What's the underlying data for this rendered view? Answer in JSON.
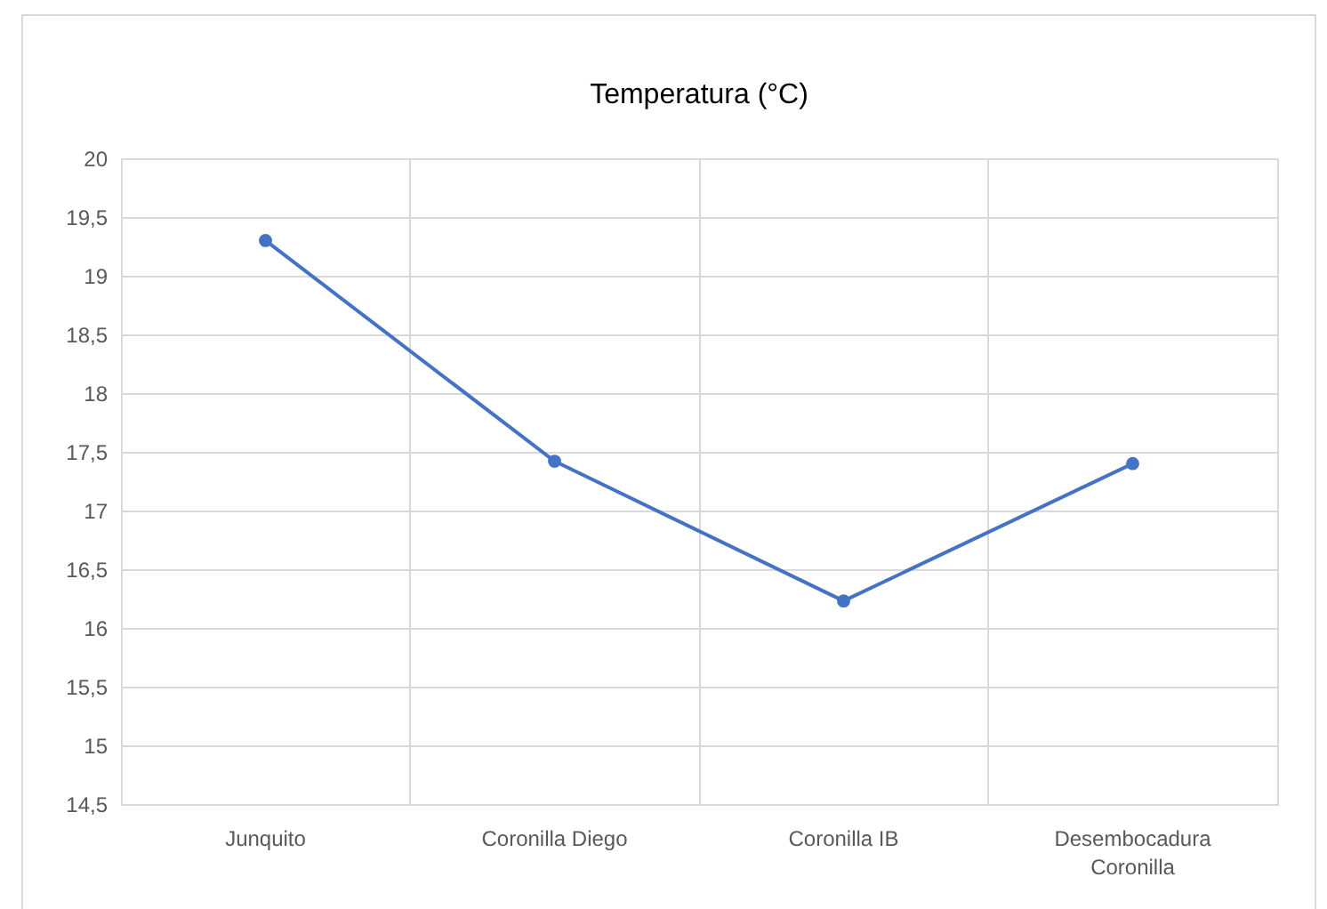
{
  "chart_data": {
    "type": "line",
    "title": "Temperatura (°C)",
    "categories": [
      "Junquito",
      "Coronilla Diego",
      "Coronilla IB",
      "Desembocadura Coronilla"
    ],
    "series": [
      {
        "color": "#4472c4",
        "values": [
          19.3,
          17.42,
          16.23,
          17.4
        ]
      }
    ],
    "ylim": [
      14.5,
      20
    ],
    "yticks": [
      {
        "value": 14.5,
        "label": "14,5"
      },
      15,
      {
        "value": 15.5,
        "label": "15,5"
      },
      16,
      {
        "value": 16.5,
        "label": "16,5"
      },
      17,
      {
        "value": 17.5,
        "label": "17,5"
      },
      18,
      {
        "value": 18.5,
        "label": "18,5"
      },
      19,
      {
        "value": 19.5,
        "label": "19,5"
      },
      20
    ],
    "grid": true,
    "marker": "circle",
    "line_style": "solid"
  }
}
